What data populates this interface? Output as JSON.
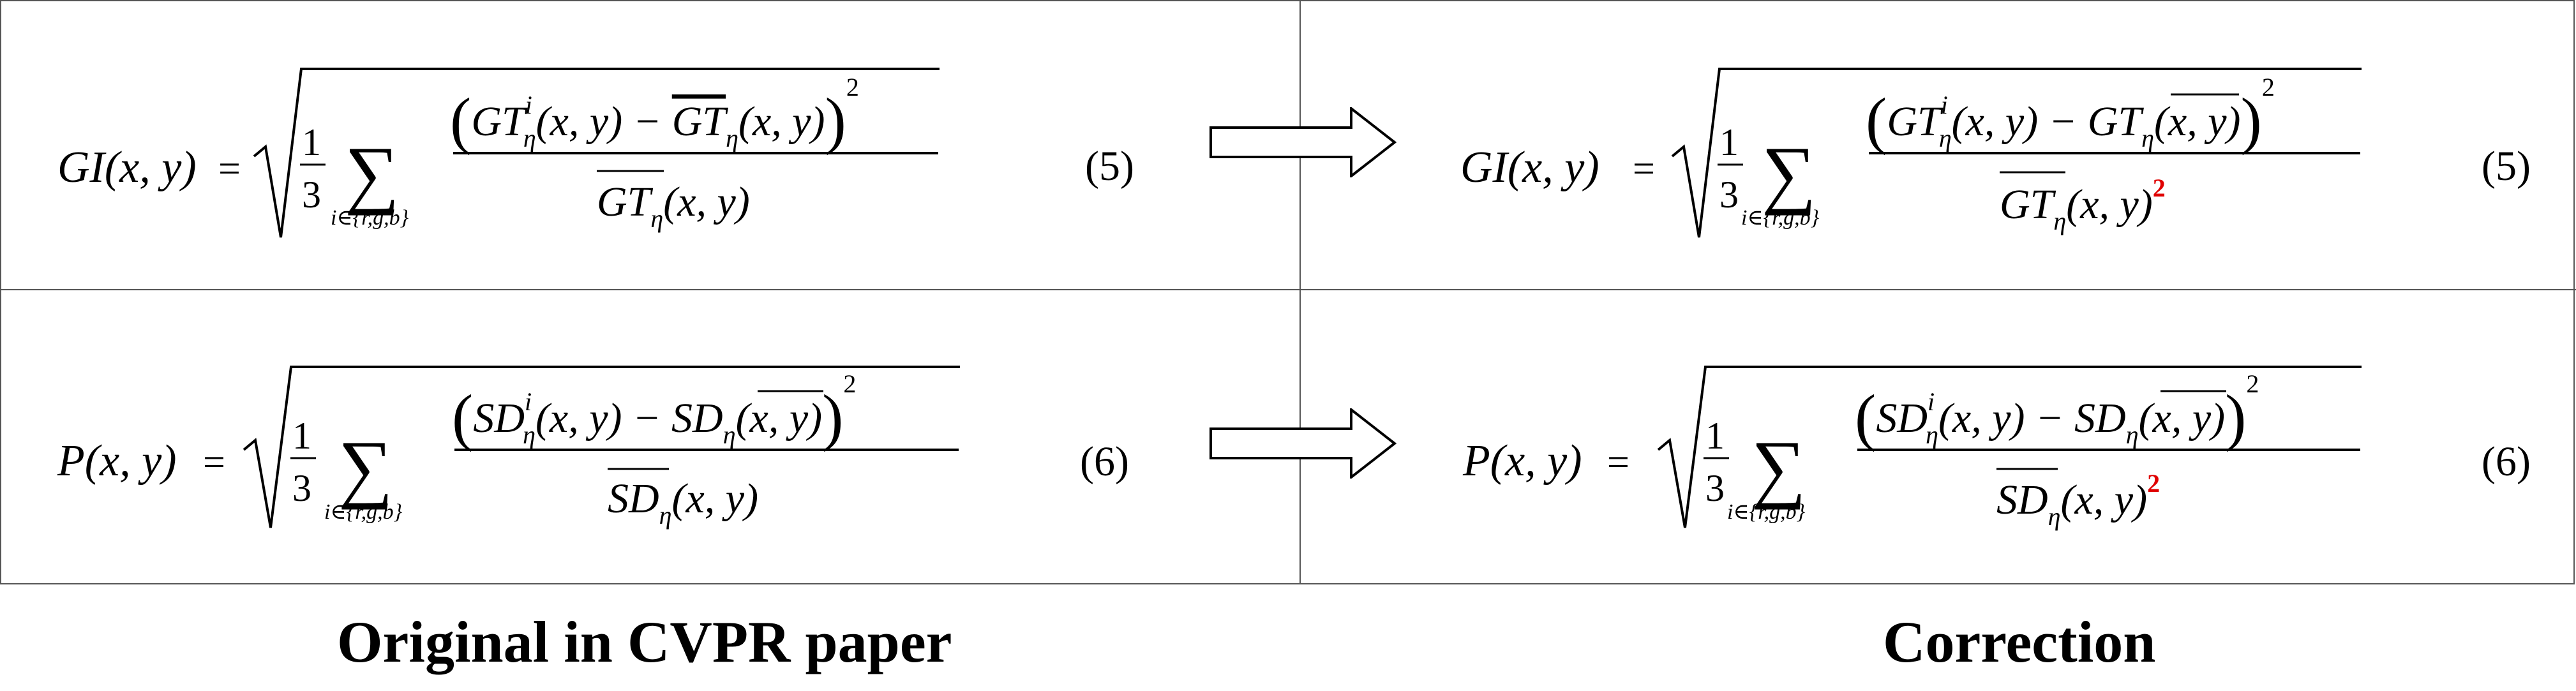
{
  "captions": {
    "original": "Original in CVPR paper",
    "correction": "Correction"
  },
  "equations": {
    "eq5": {
      "lhs_name": "GI",
      "var": "GT",
      "number": "(5)",
      "sum_index": "i∈{r,g,b}",
      "frac_num": "1",
      "frac_den": "3",
      "sub": "η",
      "sup": "i",
      "square": "2",
      "args": "(x, y)",
      "minus": "−",
      "equals": "="
    },
    "eq6": {
      "lhs_name": "P",
      "var": "SD",
      "number": "(6)",
      "sum_index": "i∈{r,g,b}",
      "frac_num": "1",
      "frac_den": "3",
      "sub": "η",
      "sup": "i",
      "square": "2",
      "args": "(x, y)",
      "minus": "−",
      "equals": "="
    }
  },
  "colors": {
    "correction_highlight": "#e00000",
    "grid_lines": "#555555"
  }
}
